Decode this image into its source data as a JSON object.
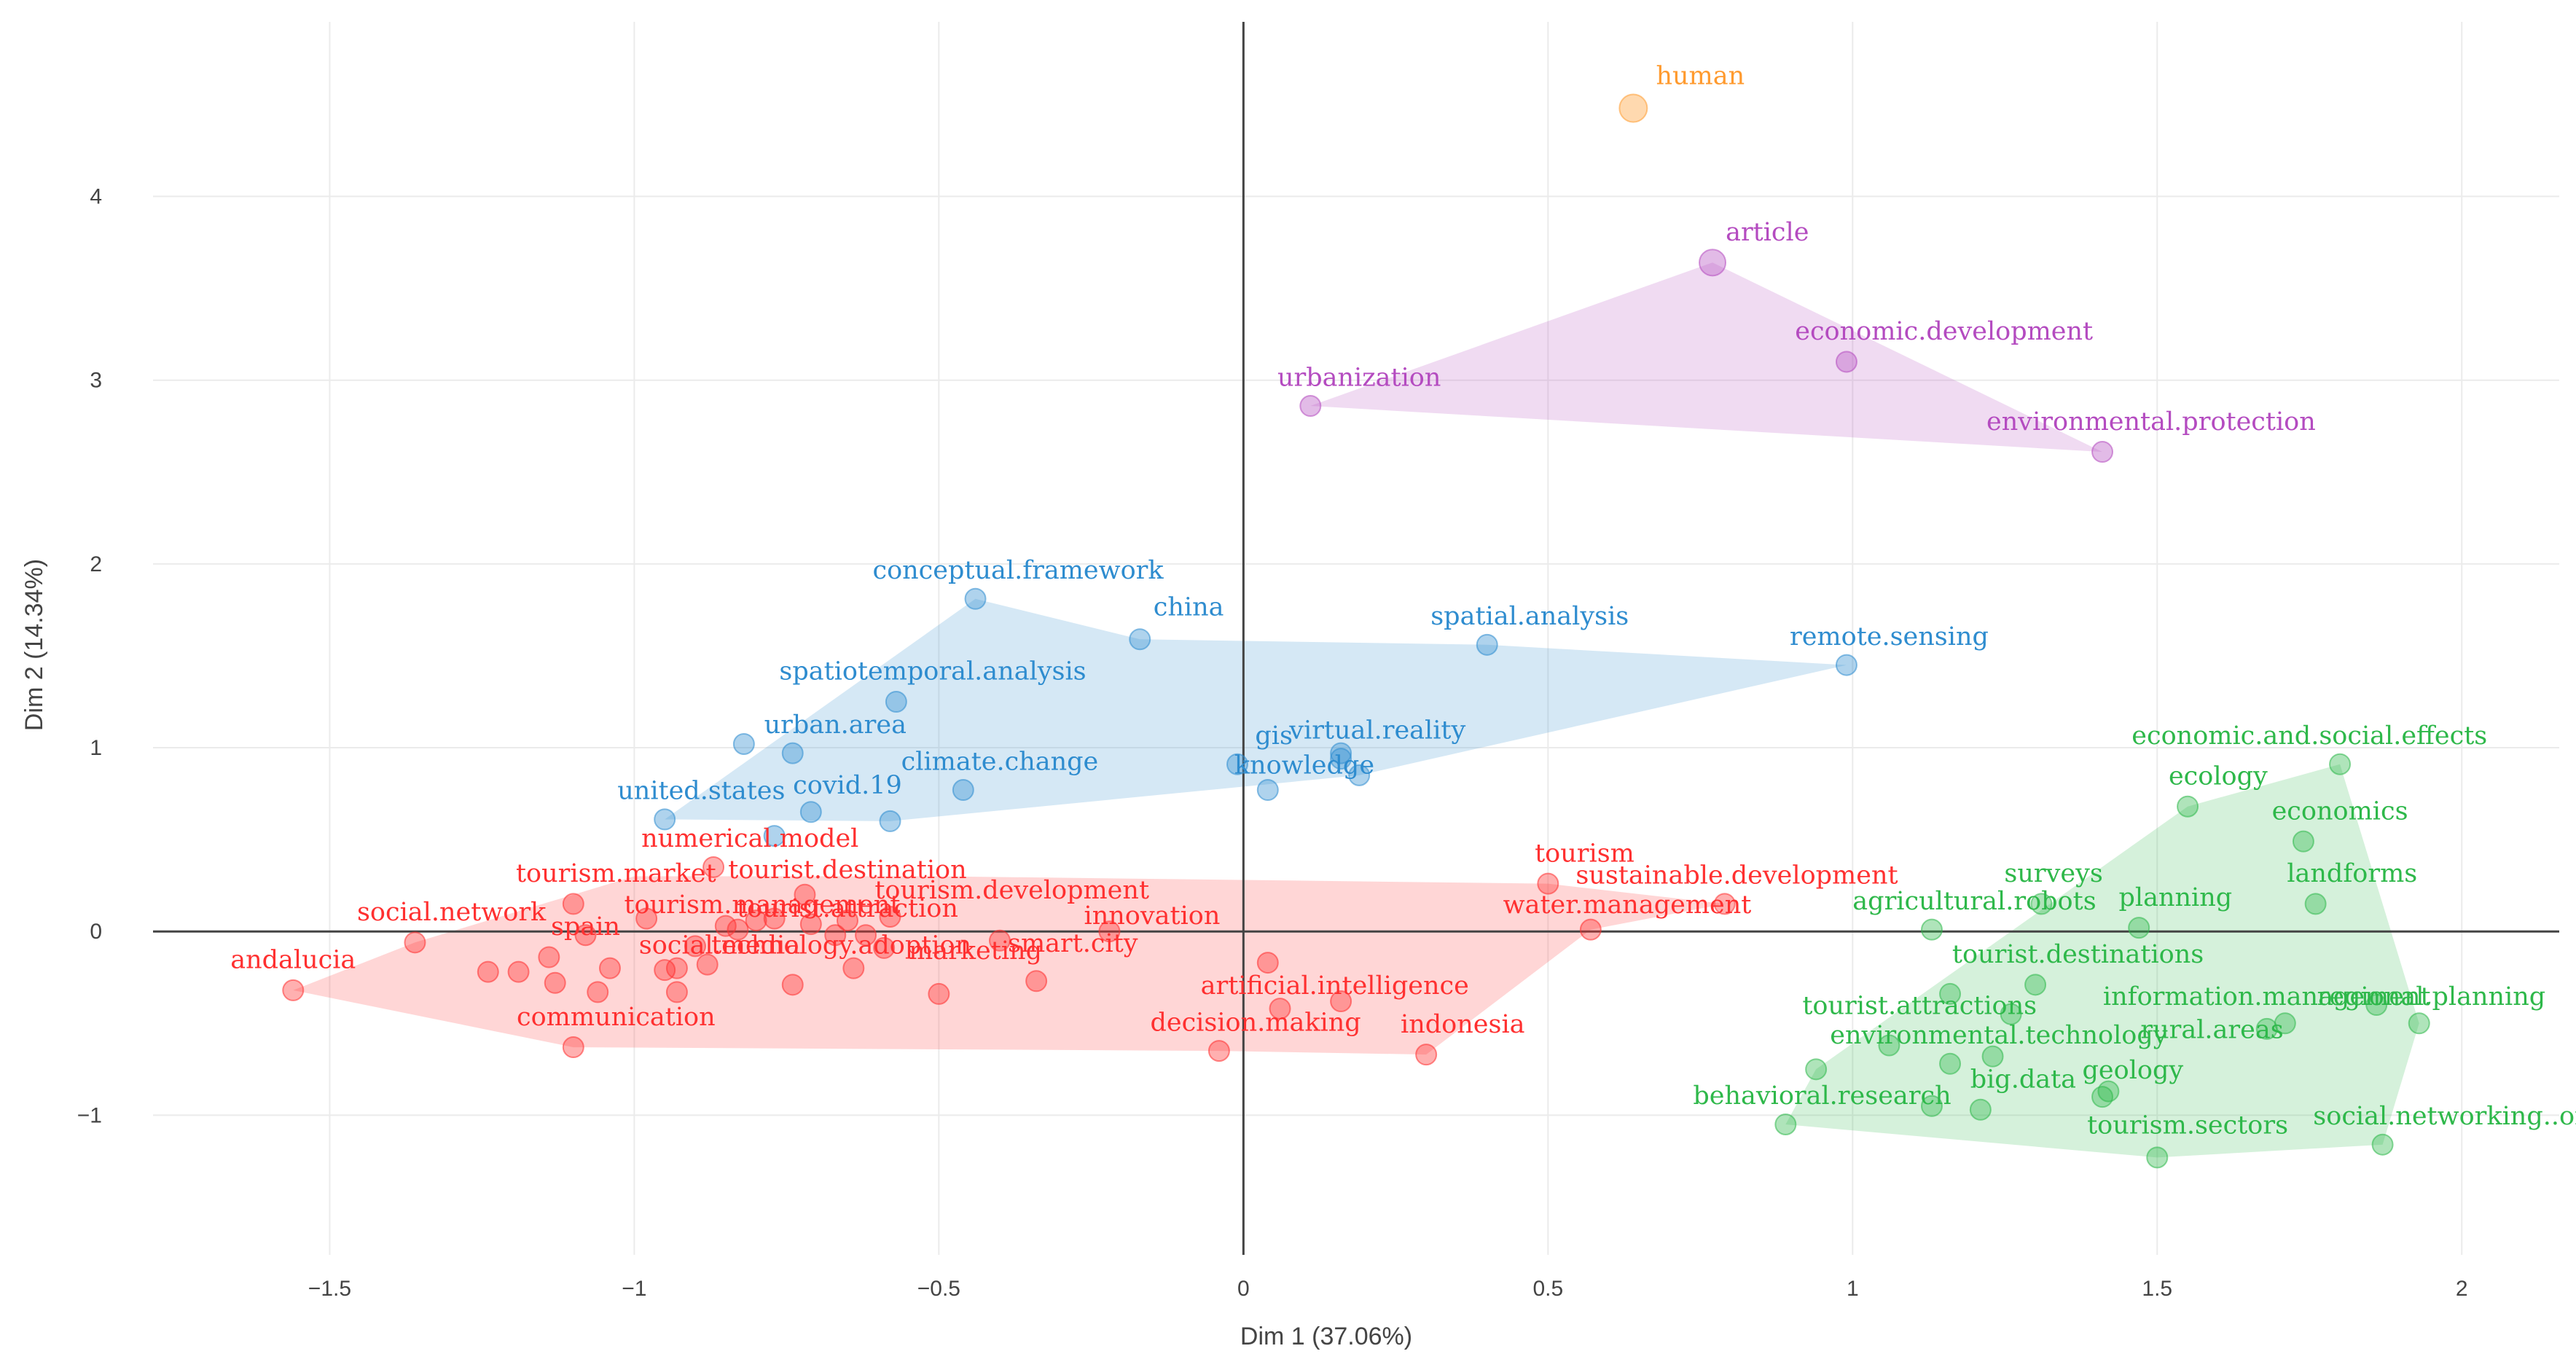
{
  "chart_data": {
    "type": "scatter",
    "title": "",
    "xlabel": "Dim 1 (37.06%)",
    "ylabel": "Dim 2 (14.34%)",
    "xlim": [
      -1.79,
      2.16
    ],
    "ylim": [
      -1.76,
      4.95
    ],
    "xticks": [
      -1.5,
      -1,
      -0.5,
      0,
      0.5,
      1,
      1.5,
      2
    ],
    "xtick_labels": [
      "−1.5",
      "−1",
      "−0.5",
      "0",
      "0.5",
      "1",
      "1.5",
      "2"
    ],
    "yticks": [
      -1,
      0,
      1,
      2,
      3,
      4
    ],
    "ytick_labels": [
      "−1",
      "0",
      "1",
      "2",
      "3",
      "4"
    ],
    "grid": true,
    "clusters": [
      {
        "name": "cluster-1",
        "color": "#ff3030",
        "hull": [
          [
            -1.56,
            -0.32
          ],
          [
            -1.36,
            -0.06
          ],
          [
            -1.0,
            0.3
          ],
          [
            -0.5,
            0.3
          ],
          [
            0.5,
            0.26
          ],
          [
            0.79,
            0.15
          ],
          [
            0.57,
            0.01
          ],
          [
            0.3,
            -0.67
          ],
          [
            -0.04,
            -0.65
          ],
          [
            -1.1,
            -0.63
          ]
        ],
        "points": [
          {
            "x": -1.56,
            "y": -0.32,
            "label": "andalucia",
            "lx": -1.56,
            "ly": -0.2
          },
          {
            "x": -1.36,
            "y": -0.06,
            "label": "social.network",
            "lx": -1.3,
            "ly": 0.06
          },
          {
            "x": -1.1,
            "y": 0.15,
            "label": "tourism.market",
            "lx": -1.03,
            "ly": 0.27
          },
          {
            "x": -1.08,
            "y": -0.02,
            "label": "spain",
            "lx": -1.08,
            "ly": -0.02
          },
          {
            "x": -1.1,
            "y": -0.63,
            "label": "communication",
            "lx": -1.03,
            "ly": -0.51
          },
          {
            "x": -0.87,
            "y": 0.35,
            "label": "numerical.model",
            "lx": -0.81,
            "ly": 0.46
          },
          {
            "x": -0.85,
            "y": 0.03,
            "label": "tourism.management",
            "lx": -0.79,
            "ly": 0.1
          },
          {
            "x": -0.72,
            "y": 0.2,
            "label": "tourist.destination",
            "lx": -0.65,
            "ly": 0.29
          },
          {
            "x": -0.67,
            "y": -0.02,
            "label": "tourist.attraction",
            "lx": -0.65,
            "ly": 0.08
          },
          {
            "x": -0.58,
            "y": 0.08,
            "label": "tourism.development",
            "lx": -0.38,
            "ly": 0.18
          },
          {
            "x": -0.93,
            "y": -0.2,
            "label": "social.media",
            "lx": -0.86,
            "ly": -0.12
          },
          {
            "x": -0.64,
            "y": -0.2,
            "label": "technology.adoption",
            "lx": -0.66,
            "ly": -0.12
          },
          {
            "x": -0.5,
            "y": -0.34,
            "label": "marketing",
            "lx": -0.44,
            "ly": -0.15
          },
          {
            "x": -0.34,
            "y": -0.27,
            "label": "smart.city",
            "lx": -0.28,
            "ly": -0.11
          },
          {
            "x": -0.22,
            "y": 0.0,
            "label": "innovation",
            "lx": -0.15,
            "ly": 0.04
          },
          {
            "x": 0.04,
            "y": -0.17,
            "label": "artificial.intelligence",
            "lx": 0.15,
            "ly": -0.34
          },
          {
            "x": -0.04,
            "y": -0.65,
            "label": "decision.making",
            "lx": 0.02,
            "ly": -0.54
          },
          {
            "x": 0.3,
            "y": -0.67,
            "label": "indonesia",
            "lx": 0.36,
            "ly": -0.55
          },
          {
            "x": 0.5,
            "y": 0.26,
            "label": "tourism",
            "lx": 0.56,
            "ly": 0.38
          },
          {
            "x": 0.79,
            "y": 0.15,
            "label": "sustainable.development",
            "lx": 0.81,
            "ly": 0.26
          },
          {
            "x": 0.57,
            "y": 0.01,
            "label": "water.management",
            "lx": 0.63,
            "ly": 0.1
          },
          {
            "x": -1.24,
            "y": -0.22
          },
          {
            "x": -1.19,
            "y": -0.22
          },
          {
            "x": -1.13,
            "y": -0.28
          },
          {
            "x": -1.14,
            "y": -0.14
          },
          {
            "x": -1.06,
            "y": -0.33
          },
          {
            "x": -1.04,
            "y": -0.2
          },
          {
            "x": -0.98,
            "y": 0.07
          },
          {
            "x": -0.95,
            "y": -0.21
          },
          {
            "x": -0.93,
            "y": -0.33
          },
          {
            "x": -0.9,
            "y": -0.08
          },
          {
            "x": -0.88,
            "y": -0.18
          },
          {
            "x": -0.83,
            "y": 0.01
          },
          {
            "x": -0.8,
            "y": 0.06
          },
          {
            "x": -0.77,
            "y": 0.07
          },
          {
            "x": -0.74,
            "y": -0.29
          },
          {
            "x": -0.71,
            "y": 0.04
          },
          {
            "x": -0.65,
            "y": 0.06
          },
          {
            "x": -0.62,
            "y": -0.02
          },
          {
            "x": -0.59,
            "y": -0.09
          },
          {
            "x": -0.4,
            "y": -0.05
          },
          {
            "x": 0.06,
            "y": -0.42
          },
          {
            "x": 0.16,
            "y": -0.38
          }
        ]
      },
      {
        "name": "cluster-2",
        "color": "#2e8ccf",
        "hull": [
          [
            -0.95,
            0.61
          ],
          [
            -0.44,
            1.81
          ],
          [
            -0.17,
            1.59
          ],
          [
            0.4,
            1.56
          ],
          [
            0.99,
            1.45
          ],
          [
            0.19,
            0.85
          ],
          [
            -0.58,
            0.6
          ]
        ],
        "points": [
          {
            "x": -0.44,
            "y": 1.81,
            "label": "conceptual.framework",
            "lx": -0.37,
            "ly": 1.92
          },
          {
            "x": -0.17,
            "y": 1.59,
            "label": "china",
            "lx": -0.09,
            "ly": 1.72
          },
          {
            "x": 0.4,
            "y": 1.56,
            "label": "spatial.analysis",
            "lx": 0.47,
            "ly": 1.67
          },
          {
            "x": 0.99,
            "y": 1.45,
            "label": "remote.sensing",
            "lx": 1.06,
            "ly": 1.56
          },
          {
            "x": -0.57,
            "y": 1.25,
            "label": "spatiotemporal.analysis",
            "lx": -0.51,
            "ly": 1.37
          },
          {
            "x": -0.74,
            "y": 0.97,
            "label": "urban.area",
            "lx": -0.67,
            "ly": 1.08
          },
          {
            "x": -0.95,
            "y": 0.61,
            "label": "united.states",
            "lx": -0.89,
            "ly": 0.72
          },
          {
            "x": -0.71,
            "y": 0.65,
            "label": "covid.19",
            "lx": -0.65,
            "ly": 0.75
          },
          {
            "x": -0.46,
            "y": 0.77,
            "label": "climate.change",
            "lx": -0.4,
            "ly": 0.88
          },
          {
            "x": -0.01,
            "y": 0.91,
            "label": "gis",
            "lx": 0.05,
            "ly": 1.02
          },
          {
            "x": 0.16,
            "y": 0.97,
            "label": "virtual.reality",
            "lx": 0.22,
            "ly": 1.05
          },
          {
            "x": 0.04,
            "y": 0.77,
            "label": "knowledge",
            "lx": 0.1,
            "ly": 0.86
          },
          {
            "x": -0.82,
            "y": 1.02
          },
          {
            "x": -0.77,
            "y": 0.52
          },
          {
            "x": -0.58,
            "y": 0.6
          },
          {
            "x": 0.16,
            "y": 0.94
          },
          {
            "x": 0.19,
            "y": 0.85
          }
        ]
      },
      {
        "name": "cluster-3",
        "color": "#b44bc0",
        "hull": [
          [
            0.11,
            2.86
          ],
          [
            0.77,
            3.64
          ],
          [
            1.41,
            2.61
          ]
        ],
        "points": [
          {
            "x": 0.77,
            "y": 3.64,
            "label": "article",
            "lx": 0.86,
            "ly": 3.76,
            "r": 36
          },
          {
            "x": 0.99,
            "y": 3.1,
            "label": "economic.development",
            "lx": 1.15,
            "ly": 3.22
          },
          {
            "x": 0.11,
            "y": 2.86,
            "label": "urbanization",
            "lx": 0.19,
            "ly": 2.97
          },
          {
            "x": 1.41,
            "y": 2.61,
            "label": "environmental.protection",
            "lx": 1.49,
            "ly": 2.73
          }
        ]
      },
      {
        "name": "cluster-4",
        "color": "#2eb84a",
        "hull": [
          [
            0.89,
            -1.05
          ],
          [
            1.5,
            -1.23
          ],
          [
            1.87,
            -1.16
          ],
          [
            1.93,
            -0.5
          ],
          [
            1.8,
            0.91
          ],
          [
            1.55,
            0.68
          ],
          [
            0.94,
            -0.75
          ]
        ],
        "points": [
          {
            "x": 1.8,
            "y": 0.91,
            "label": "economic.and.social.effects",
            "lx": 1.75,
            "ly": 1.02
          },
          {
            "x": 1.55,
            "y": 0.68,
            "label": "ecology",
            "lx": 1.6,
            "ly": 0.8
          },
          {
            "x": 1.74,
            "y": 0.49,
            "label": "economics",
            "lx": 1.8,
            "ly": 0.61
          },
          {
            "x": 1.76,
            "y": 0.15,
            "label": "landforms",
            "lx": 1.82,
            "ly": 0.27
          },
          {
            "x": 1.31,
            "y": 0.15,
            "label": "surveys",
            "lx": 1.33,
            "ly": 0.27
          },
          {
            "x": 1.47,
            "y": 0.02,
            "label": "planning",
            "lx": 1.53,
            "ly": 0.14
          },
          {
            "x": 1.13,
            "y": 0.01,
            "label": "agricultural.robots",
            "lx": 1.2,
            "ly": 0.12
          },
          {
            "x": 1.3,
            "y": -0.29,
            "label": "tourist.destinations",
            "lx": 1.37,
            "ly": -0.17
          },
          {
            "x": 1.86,
            "y": -0.4,
            "label": "information.management",
            "lx": 1.68,
            "ly": -0.4
          },
          {
            "x": 1.93,
            "y": -0.5,
            "label": "regional.planning",
            "lx": 1.95,
            "ly": -0.4
          },
          {
            "x": 1.68,
            "y": -0.53,
            "label": "rural.areas",
            "lx": 1.59,
            "ly": -0.58
          },
          {
            "x": 1.16,
            "y": -0.34,
            "label": "tourist.attractions",
            "lx": 1.11,
            "ly": -0.45
          },
          {
            "x": 1.16,
            "y": -0.72,
            "label": "environmental.technology",
            "lx": 1.24,
            "ly": -0.61
          },
          {
            "x": 1.21,
            "y": -0.97,
            "label": "big.data",
            "lx": 1.28,
            "ly": -0.85
          },
          {
            "x": 1.41,
            "y": -0.9,
            "label": "geology",
            "lx": 1.46,
            "ly": -0.8
          },
          {
            "x": 0.89,
            "y": -1.05,
            "label": "behavioral.research",
            "lx": 0.95,
            "ly": -0.94
          },
          {
            "x": 1.5,
            "y": -1.23,
            "label": "tourism.sectors",
            "lx": 1.55,
            "ly": -1.1
          },
          {
            "x": 1.87,
            "y": -1.16,
            "label": "social.networking..online.",
            "lx": 2.03,
            "ly": -1.05
          },
          {
            "x": 0.94,
            "y": -0.75
          },
          {
            "x": 1.06,
            "y": -0.62
          },
          {
            "x": 1.13,
            "y": -0.95
          },
          {
            "x": 1.26,
            "y": -0.45
          },
          {
            "x": 1.23,
            "y": -0.68
          },
          {
            "x": 1.42,
            "y": -0.87
          },
          {
            "x": 1.71,
            "y": -0.5
          }
        ]
      },
      {
        "name": "cluster-5",
        "color": "#ff9a2e",
        "hull": [],
        "points": [
          {
            "x": 0.64,
            "y": 4.48,
            "label": "human",
            "lx": 0.75,
            "ly": 4.61,
            "r": 38
          }
        ]
      }
    ]
  }
}
